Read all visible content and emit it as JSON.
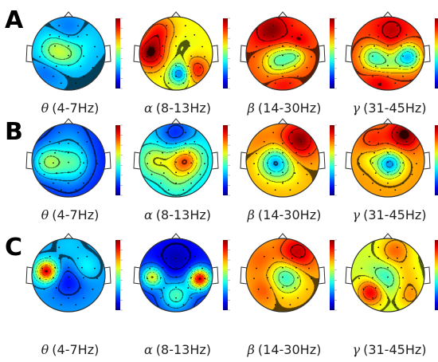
{
  "rows": [
    {
      "letter": "A",
      "maps": [
        {
          "greek": "θ",
          "range": "(4-7Hz)",
          "base": 0.3,
          "blobs": [
            [
              -0.35,
              -0.05,
              0.3,
              0.28
            ],
            [
              0.1,
              0.05,
              0.25,
              0.1
            ],
            [
              0.0,
              -0.6,
              0.3,
              -0.08
            ],
            [
              -0.55,
              0.4,
              0.3,
              -0.1
            ],
            [
              0.4,
              -0.35,
              0.3,
              0.06
            ]
          ]
        },
        {
          "greek": "α",
          "range": "(8-13Hz)",
          "base": 0.62,
          "blobs": [
            [
              -0.7,
              0.0,
              0.3,
              0.38
            ],
            [
              0.55,
              0.45,
              0.25,
              0.25
            ],
            [
              0.1,
              0.55,
              0.2,
              -0.4
            ],
            [
              0.0,
              -0.15,
              0.3,
              -0.05
            ],
            [
              -0.45,
              -0.6,
              0.3,
              0.22
            ]
          ]
        },
        {
          "greek": "β",
          "range": "(14-30Hz)",
          "base": 0.8,
          "blobs": [
            [
              -0.3,
              -0.6,
              0.35,
              0.2
            ],
            [
              -0.1,
              0.2,
              0.3,
              -0.35
            ],
            [
              0.35,
              0.05,
              0.2,
              -0.22
            ],
            [
              0.45,
              -0.3,
              0.2,
              0.12
            ],
            [
              0.0,
              0.75,
              0.25,
              0.1
            ]
          ]
        },
        {
          "greek": "γ",
          "range": "(31-45Hz)",
          "base": 0.82,
          "blobs": [
            [
              0.55,
              0.1,
              0.25,
              -0.5
            ],
            [
              -0.4,
              0.1,
              0.25,
              -0.35
            ],
            [
              0.0,
              0.3,
              0.25,
              -0.2
            ],
            [
              0.1,
              -0.6,
              0.3,
              0.12
            ],
            [
              -0.2,
              0.75,
              0.25,
              0.1
            ]
          ]
        }
      ]
    },
    {
      "letter": "B",
      "maps": [
        {
          "greek": "θ",
          "range": "(4-7Hz)",
          "base": 0.15,
          "blobs": [
            [
              -0.55,
              0.05,
              0.3,
              0.35
            ],
            [
              0.2,
              0.05,
              0.3,
              0.2
            ],
            [
              0.0,
              0.45,
              0.35,
              0.1
            ],
            [
              0.0,
              -0.55,
              0.4,
              0.12
            ]
          ]
        },
        {
          "greek": "α",
          "range": "(8-13Hz)",
          "base": 0.35,
          "blobs": [
            [
              0.25,
              0.0,
              0.3,
              0.45
            ],
            [
              -0.55,
              0.0,
              0.3,
              0.25
            ],
            [
              0.0,
              -0.7,
              0.35,
              -0.2
            ],
            [
              0.0,
              0.55,
              0.3,
              0.12
            ]
          ]
        },
        {
          "greek": "β",
          "range": "(14-30Hz)",
          "base": 0.7,
          "blobs": [
            [
              0.45,
              -0.55,
              0.35,
              0.3
            ],
            [
              -0.2,
              0.05,
              0.3,
              -0.42
            ],
            [
              0.2,
              0.4,
              0.3,
              -0.05
            ],
            [
              -0.5,
              -0.4,
              0.3,
              0.08
            ]
          ]
        },
        {
          "greek": "γ",
          "range": "(31-45Hz)",
          "base": 0.72,
          "blobs": [
            [
              0.45,
              -0.7,
              0.3,
              0.3
            ],
            [
              0.05,
              0.1,
              0.25,
              -0.45
            ],
            [
              -0.5,
              -0.05,
              0.2,
              -0.1
            ],
            [
              -0.4,
              -0.55,
              0.3,
              0.12
            ]
          ]
        }
      ]
    },
    {
      "letter": "C",
      "maps": [
        {
          "greek": "θ",
          "range": "(4-7Hz)",
          "base": 0.28,
          "blobs": [
            [
              -0.6,
              -0.1,
              0.2,
              0.65
            ],
            [
              0.0,
              0.15,
              0.35,
              -0.15
            ],
            [
              0.45,
              -0.2,
              0.25,
              0.12
            ],
            [
              0.0,
              -0.75,
              0.3,
              0.05
            ]
          ]
        },
        {
          "greek": "α",
          "range": "(8-13Hz)",
          "base": 0.15,
          "blobs": [
            [
              0.65,
              0.1,
              0.2,
              0.75
            ],
            [
              -0.65,
              0.05,
              0.2,
              0.45
            ],
            [
              0.0,
              0.55,
              0.3,
              0.3
            ],
            [
              0.0,
              -0.45,
              0.35,
              -0.1
            ]
          ]
        },
        {
          "greek": "β",
          "range": "(14-30Hz)",
          "base": 0.7,
          "blobs": [
            [
              0.4,
              -0.6,
              0.35,
              0.25
            ],
            [
              0.1,
              0.05,
              0.3,
              -0.3
            ],
            [
              -0.5,
              0.4,
              0.25,
              0.1
            ],
            [
              -0.6,
              -0.4,
              0.3,
              0.08
            ]
          ]
        },
        {
          "greek": "γ",
          "range": "(31-45Hz)",
          "base": 0.58,
          "blobs": [
            [
              -0.45,
              0.45,
              0.25,
              0.35
            ],
            [
              0.5,
              0.0,
              0.25,
              0.1
            ],
            [
              0.2,
              -0.65,
              0.3,
              0.2
            ],
            [
              -0.1,
              0.1,
              0.3,
              -0.2
            ],
            [
              0.6,
              0.55,
              0.25,
              0.15
            ]
          ]
        }
      ]
    }
  ]
}
